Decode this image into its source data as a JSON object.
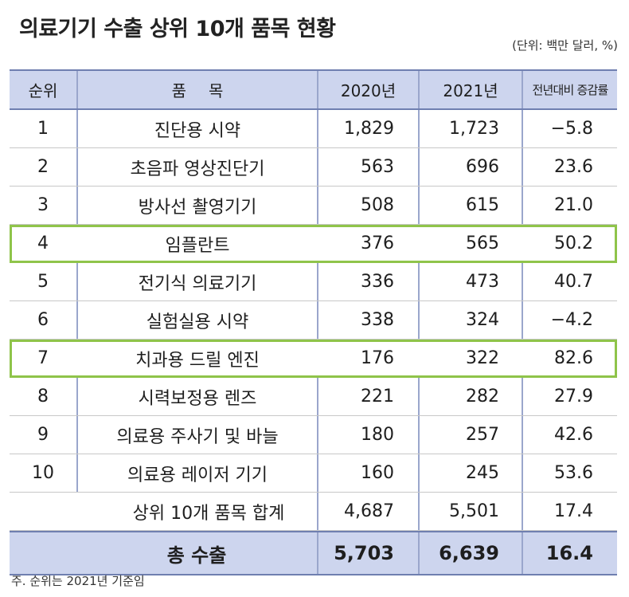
{
  "title": "의료기기 수출 상위 10개 품목 현황",
  "unit_note": "(단위: 백만 달러, %)",
  "headers": {
    "rank": "순위",
    "item": "품목",
    "y2020": "2020년",
    "y2021": "2021년",
    "change": "전년대비 증감률"
  },
  "rows": [
    {
      "rank": "1",
      "item": "진단용 시약",
      "y2020": "1,829",
      "y2021": "1,723",
      "change": "−5.8",
      "highlight": false
    },
    {
      "rank": "2",
      "item": "초음파 영상진단기",
      "y2020": "563",
      "y2021": "696",
      "change": "23.6",
      "highlight": false
    },
    {
      "rank": "3",
      "item": "방사선 촬영기기",
      "y2020": "508",
      "y2021": "615",
      "change": "21.0",
      "highlight": false
    },
    {
      "rank": "4",
      "item": "임플란트",
      "y2020": "376",
      "y2021": "565",
      "change": "50.2",
      "highlight": true
    },
    {
      "rank": "5",
      "item": "전기식 의료기기",
      "y2020": "336",
      "y2021": "473",
      "change": "40.7",
      "highlight": false
    },
    {
      "rank": "6",
      "item": "실험실용 시약",
      "y2020": "338",
      "y2021": "324",
      "change": "−4.2",
      "highlight": false
    },
    {
      "rank": "7",
      "item": "치과용 드릴 엔진",
      "y2020": "176",
      "y2021": "322",
      "change": "82.6",
      "highlight": true
    },
    {
      "rank": "8",
      "item": "시력보정용 렌즈",
      "y2020": "221",
      "y2021": "282",
      "change": "27.9",
      "highlight": false
    },
    {
      "rank": "9",
      "item": "의료용 주사기 및 바늘",
      "y2020": "180",
      "y2021": "257",
      "change": "42.6",
      "highlight": false
    },
    {
      "rank": "10",
      "item": "의료용 레이저 기기",
      "y2020": "160",
      "y2021": "245",
      "change": "53.6",
      "highlight": false
    }
  ],
  "subtotal": {
    "label": "상위 10개 품목 합계",
    "y2020": "4,687",
    "y2021": "5,501",
    "change": "17.4"
  },
  "total": {
    "label": "총 수출",
    "y2020": "5,703",
    "y2021": "6,639",
    "change": "16.4"
  },
  "footnote": "주. 순위는 2021년 기준임",
  "colors": {
    "header_bg": "#cdd5ee",
    "highlight_border": "#8fc44a",
    "rule": "#6f7fb0"
  }
}
